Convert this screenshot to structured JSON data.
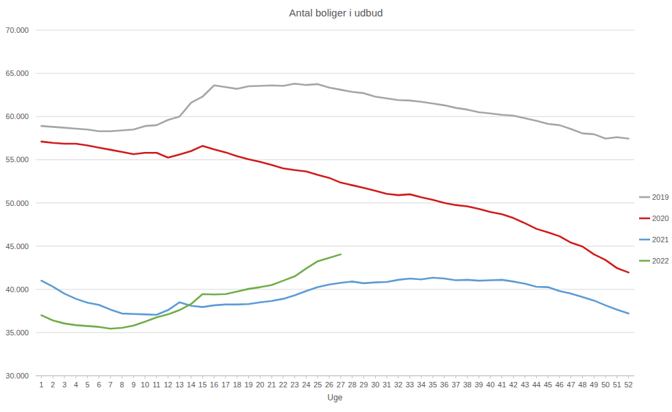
{
  "chart_data": {
    "type": "line",
    "title": "Antal boliger i udbud",
    "x_label": "Uge",
    "x": [
      1,
      2,
      3,
      4,
      5,
      6,
      7,
      8,
      9,
      10,
      11,
      12,
      13,
      14,
      15,
      16,
      17,
      18,
      19,
      20,
      21,
      22,
      23,
      24,
      25,
      26,
      27,
      28,
      29,
      30,
      31,
      32,
      33,
      34,
      35,
      36,
      37,
      38,
      39,
      40,
      41,
      42,
      43,
      44,
      45,
      46,
      47,
      48,
      49,
      50,
      51,
      52
    ],
    "xlim": [
      0.5,
      52.5
    ],
    "xticks": [
      1,
      2,
      3,
      4,
      5,
      6,
      7,
      8,
      9,
      10,
      11,
      12,
      13,
      14,
      15,
      16,
      17,
      18,
      19,
      20,
      21,
      22,
      23,
      24,
      25,
      26,
      27,
      28,
      29,
      30,
      31,
      32,
      33,
      34,
      35,
      36,
      37,
      38,
      39,
      40,
      41,
      42,
      43,
      44,
      45,
      46,
      47,
      48,
      49,
      50,
      51,
      52
    ],
    "ylim": [
      30000,
      70000
    ],
    "yticks": [
      {
        "value": 30000,
        "label": "30.000"
      },
      {
        "value": 35000,
        "label": "35.000"
      },
      {
        "value": 40000,
        "label": "40.000"
      },
      {
        "value": 45000,
        "label": "45.000"
      },
      {
        "value": 50000,
        "label": "50.000"
      },
      {
        "value": 55000,
        "label": "55.000"
      },
      {
        "value": 60000,
        "label": "60.000"
      },
      {
        "value": 65000,
        "label": "65.000"
      },
      {
        "value": 70000,
        "label": "70.000"
      }
    ],
    "grid": true,
    "legend": "right",
    "series": [
      {
        "name": "2019",
        "color": "#a5a5a5",
        "values": [
          58900,
          58800,
          58700,
          58600,
          58500,
          58300,
          58300,
          58400,
          58500,
          58900,
          59000,
          59600,
          60000,
          61600,
          62300,
          63600,
          63400,
          63200,
          63500,
          63550,
          63600,
          63550,
          63800,
          63650,
          63750,
          63350,
          63100,
          62850,
          62700,
          62300,
          62100,
          61900,
          61850,
          61700,
          61500,
          61300,
          61000,
          60800,
          60500,
          60350,
          60200,
          60100,
          59800,
          59500,
          59150,
          59000,
          58550,
          58050,
          57950,
          57450,
          57600,
          57450
        ]
      },
      {
        "name": "2020",
        "color": "#d11a1a",
        "values": [
          57100,
          56950,
          56850,
          56850,
          56650,
          56400,
          56150,
          55900,
          55650,
          55800,
          55800,
          55250,
          55600,
          56000,
          56600,
          56200,
          55850,
          55400,
          55050,
          54750,
          54400,
          54000,
          53800,
          53650,
          53250,
          52900,
          52350,
          52050,
          51750,
          51400,
          51050,
          50900,
          51000,
          50650,
          50350,
          50000,
          49750,
          49600,
          49300,
          48950,
          48700,
          48250,
          47650,
          47000,
          46600,
          46150,
          45400,
          44950,
          44050,
          43400,
          42450,
          41950
        ]
      },
      {
        "name": "2021",
        "color": "#5b9bd5",
        "values": [
          41000,
          40300,
          39500,
          38900,
          38450,
          38200,
          37650,
          37200,
          37150,
          37100,
          37050,
          37600,
          38500,
          38100,
          37950,
          38150,
          38250,
          38250,
          38300,
          38500,
          38650,
          38900,
          39300,
          39800,
          40250,
          40550,
          40750,
          40900,
          40700,
          40800,
          40850,
          41100,
          41250,
          41150,
          41350,
          41250,
          41050,
          41100,
          41000,
          41050,
          41100,
          40900,
          40650,
          40300,
          40250,
          39800,
          39500,
          39100,
          38700,
          38150,
          37650,
          37200
        ]
      },
      {
        "name": "2022",
        "color": "#70ad47",
        "values": [
          37000,
          36400,
          36050,
          35850,
          35750,
          35650,
          35450,
          35550,
          35800,
          36250,
          36750,
          37100,
          37600,
          38300,
          39450,
          39400,
          39450,
          39750,
          40050,
          40250,
          40500,
          41000,
          41500,
          42400,
          43250,
          43650,
          44050,
          null,
          null,
          null,
          null,
          null,
          null,
          null,
          null,
          null,
          null,
          null,
          null,
          null,
          null,
          null,
          null,
          null,
          null,
          null,
          null,
          null,
          null,
          null,
          null,
          null
        ]
      }
    ]
  }
}
